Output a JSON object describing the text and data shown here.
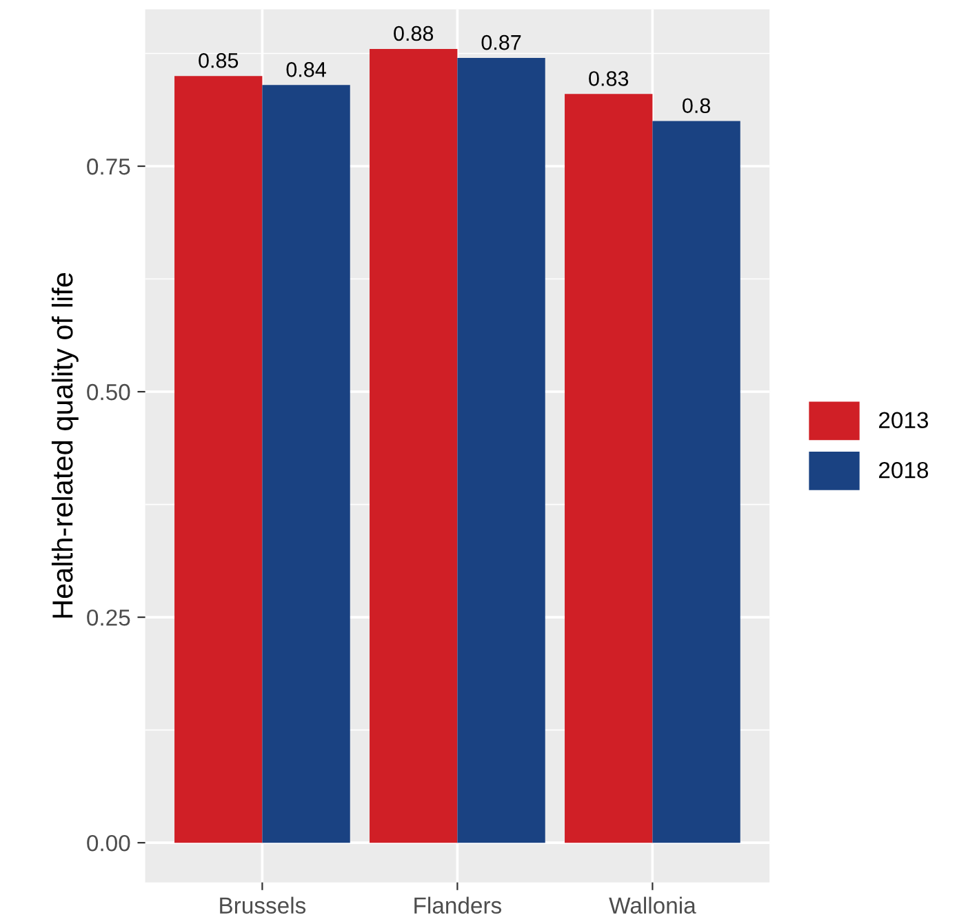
{
  "chart_data": {
    "type": "bar",
    "ylabel": "Health-related quality of life",
    "categories": [
      "Brussels",
      "Flanders",
      "Wallonia"
    ],
    "series": [
      {
        "name": "2013",
        "color": "#d01f26",
        "values": [
          0.85,
          0.88,
          0.83
        ]
      },
      {
        "name": "2018",
        "color": "#1a4282",
        "values": [
          0.84,
          0.87,
          0.8
        ]
      }
    ],
    "ylim": [
      -0.044,
      0.924
    ],
    "yticks": [
      {
        "value": 0,
        "label": "0.00"
      },
      {
        "value": 0.25,
        "label": "0.25"
      },
      {
        "value": 0.5,
        "label": "0.50"
      },
      {
        "value": 0.75,
        "label": "0.75"
      }
    ],
    "grid": true,
    "legend": "right",
    "data_labels": true
  }
}
